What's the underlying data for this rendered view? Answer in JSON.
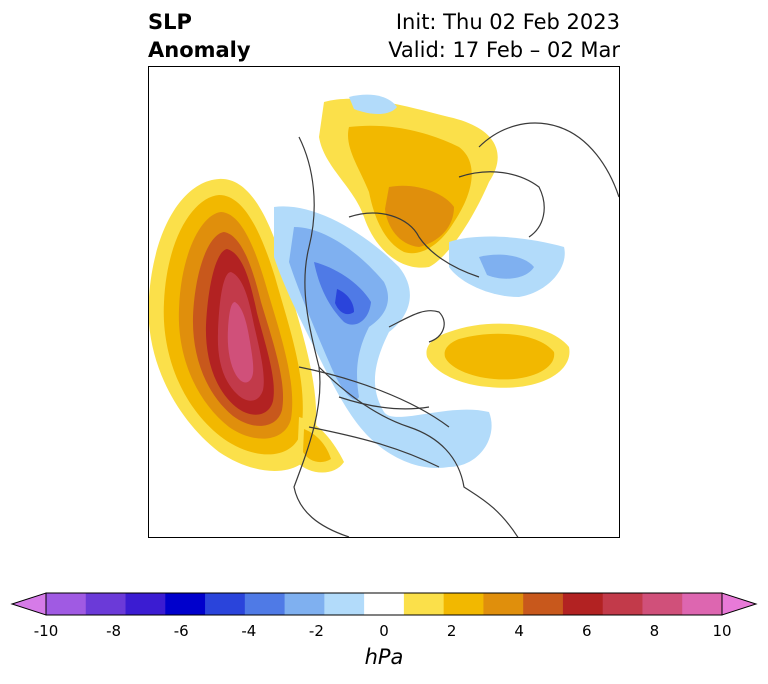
{
  "title": {
    "left_line1": "SLP",
    "left_line2": "Anomaly",
    "init": "Init: Thu 02 Feb 2023",
    "valid": "Valid: 17 Feb – 02 Mar"
  },
  "colorbar": {
    "units": "hPa",
    "ticks": [
      "-10",
      "-8",
      "-6",
      "-4",
      "-2",
      "0",
      "2",
      "4",
      "6",
      "8",
      "10"
    ],
    "colors": [
      "#d67be8",
      "#a05ae3",
      "#6b3ad8",
      "#3b1cd2",
      "#0000cc",
      "#2a44db",
      "#4f7ae6",
      "#7fb0f0",
      "#b2dbfa",
      "#ffffff",
      "#fbe04a",
      "#f2b800",
      "#e08f0c",
      "#c8581c",
      "#b22222",
      "#c23a4a",
      "#d0507a",
      "#dd66b0",
      "#e87ad8"
    ]
  }
}
